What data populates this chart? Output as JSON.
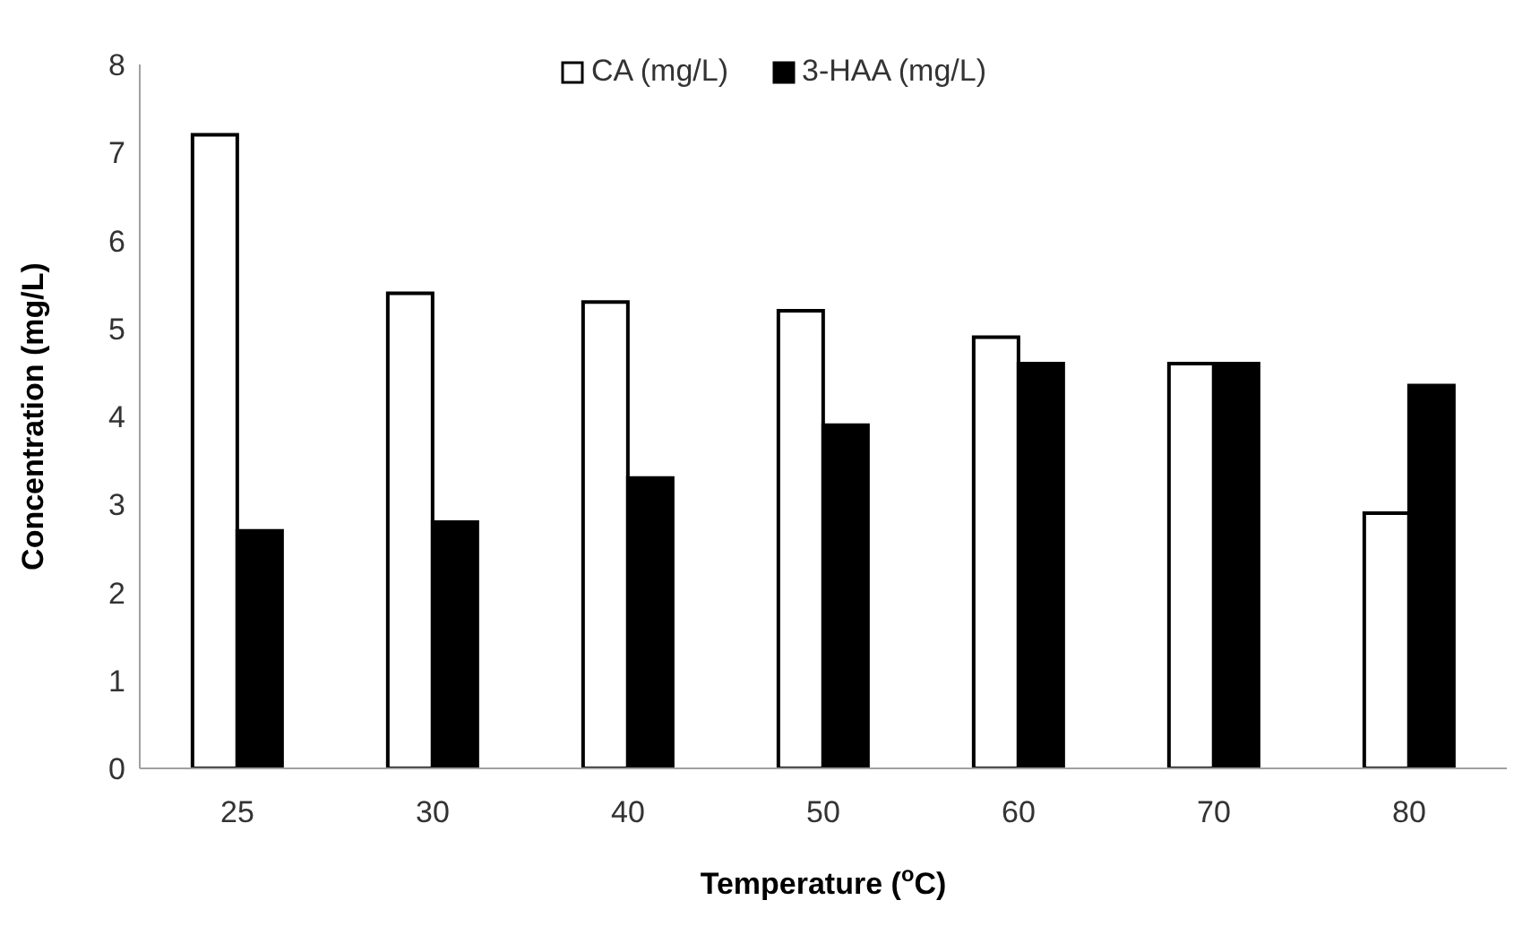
{
  "chart_data": {
    "type": "bar",
    "xlabel": "Temperature ($^{o}$C)",
    "ylabel": "Concentration (mg/L)",
    "categories": [
      "25",
      "30",
      "40",
      "50",
      "60",
      "70",
      "80"
    ],
    "series": [
      {
        "name": "CA (mg/L)",
        "color": "#ffffff",
        "values": [
          7.2,
          5.4,
          5.3,
          5.2,
          4.9,
          4.6,
          2.9
        ]
      },
      {
        "name": "3-HAA (mg/L)",
        "color": "#000000",
        "values": [
          2.7,
          2.8,
          3.3,
          3.9,
          4.6,
          4.6,
          4.35
        ]
      }
    ],
    "ylim": [
      0,
      8
    ],
    "yticks": [
      0,
      1,
      2,
      3,
      4,
      5,
      6,
      7,
      8
    ],
    "grid": false,
    "legend": "top right"
  }
}
